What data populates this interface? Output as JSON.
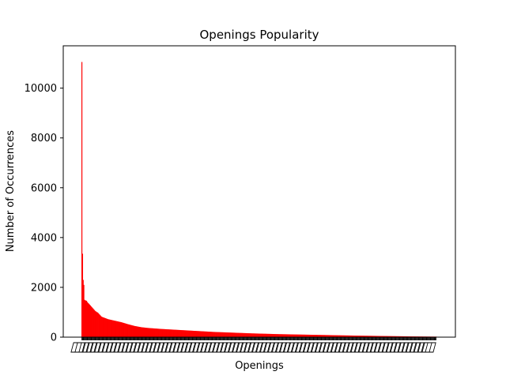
{
  "chart_data": {
    "type": "bar",
    "title": "Openings Popularity",
    "xlabel": "Openings",
    "ylabel": "Number of Occurrences",
    "ylim": [
      0,
      11700
    ],
    "yticks": [
      0,
      2000,
      4000,
      6000,
      8000,
      10000
    ],
    "bar_color": "#ff0000",
    "category_count": 540,
    "category_labels_legible": false,
    "values_note": "Sorted descending; values estimated from the plotted curve",
    "head_values": [
      11050,
      3350,
      2300,
      2100,
      1500,
      1480,
      1470,
      1460,
      1420,
      1380,
      1360,
      1330,
      1300,
      1270,
      1240,
      1210,
      1180,
      1150,
      1120,
      1090,
      1060,
      1040,
      1020,
      1000
    ],
    "curve_points": [
      [
        24,
        990
      ],
      [
        30,
        820
      ],
      [
        40,
        720
      ],
      [
        50,
        660
      ],
      [
        60,
        600
      ],
      [
        70,
        520
      ],
      [
        80,
        450
      ],
      [
        90,
        400
      ],
      [
        100,
        370
      ],
      [
        120,
        330
      ],
      [
        140,
        300
      ],
      [
        160,
        270
      ],
      [
        180,
        240
      ],
      [
        200,
        210
      ],
      [
        230,
        180
      ],
      [
        260,
        150
      ],
      [
        300,
        120
      ],
      [
        340,
        100
      ],
      [
        380,
        80
      ],
      [
        420,
        60
      ],
      [
        460,
        45
      ],
      [
        500,
        30
      ],
      [
        539,
        20
      ]
    ]
  }
}
